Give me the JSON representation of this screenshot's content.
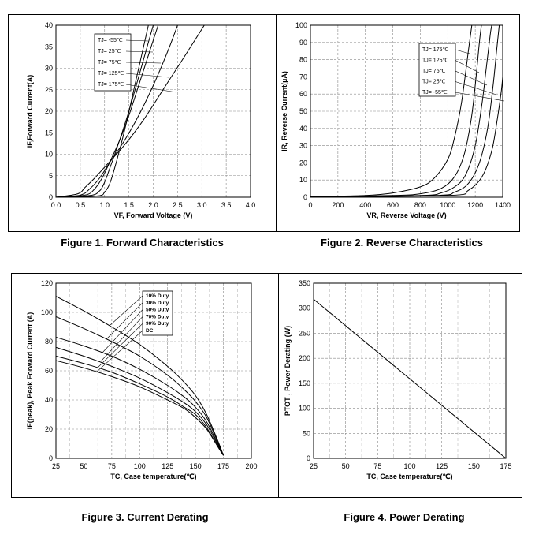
{
  "figures": {
    "fig1": "Figure 1. Forward Characteristics",
    "fig2": "Figure 2. Reverse Characteristics",
    "fig3": "Figure 3. Current Derating",
    "fig4": "Figure 4. Power Derating"
  },
  "chart_data": [
    {
      "id": "forward",
      "type": "line",
      "xlabel": "VF, Forward Voltage (V)",
      "ylabel": "IF,Forward Current(A)",
      "xlim": [
        0,
        4.0
      ],
      "ylim": [
        0,
        40
      ],
      "xticks": [
        0.0,
        0.5,
        1.0,
        1.5,
        2.0,
        2.5,
        3.0,
        3.5,
        4.0
      ],
      "xtick_labels": [
        "0.0",
        "0.5",
        "1.0",
        "1.5",
        "2.0",
        "2.5",
        "3.0",
        "3.5",
        "4.0"
      ],
      "yticks": [
        0,
        5,
        10,
        15,
        20,
        25,
        30,
        35,
        40
      ],
      "grid": "dashed",
      "legend_position": "top-left",
      "series": [
        {
          "name": "TJ= -55℃",
          "x": [
            0.0,
            0.85,
            1.0,
            1.1,
            1.2,
            1.4,
            1.6,
            1.8,
            1.9
          ],
          "y": [
            0,
            0.3,
            1.2,
            3.0,
            6.5,
            15,
            25,
            35,
            40
          ]
        },
        {
          "name": "TJ= 25℃",
          "x": [
            0.0,
            0.7,
            0.9,
            1.0,
            1.1,
            1.3,
            1.5,
            1.7,
            1.9,
            2.0
          ],
          "y": [
            0,
            0.4,
            1.5,
            3.5,
            6.5,
            13,
            20,
            28,
            36,
            40
          ]
        },
        {
          "name": "TJ= 75℃",
          "x": [
            0.0,
            0.6,
            0.8,
            0.95,
            1.1,
            1.3,
            1.5,
            1.7,
            1.9,
            2.1
          ],
          "y": [
            0,
            0.5,
            2.0,
            4.5,
            8.0,
            13,
            19,
            26,
            33,
            40
          ]
        },
        {
          "name": "TJ= 125℃",
          "x": [
            0.0,
            0.5,
            0.7,
            0.9,
            1.1,
            1.4,
            1.7,
            2.0,
            2.3,
            2.5
          ],
          "y": [
            0,
            0.5,
            2.0,
            4.5,
            8.0,
            13,
            19,
            26,
            34,
            40
          ]
        },
        {
          "name": "TJ= 175℃",
          "x": [
            0.0,
            0.45,
            0.6,
            0.8,
            1.0,
            1.4,
            1.8,
            2.2,
            2.6,
            3.05
          ],
          "y": [
            0,
            0.8,
            2.3,
            4.5,
            7.0,
            12,
            18,
            25,
            32,
            40
          ]
        }
      ]
    },
    {
      "id": "reverse",
      "type": "line",
      "xlabel": "VR, Reverse Voltage (V)",
      "ylabel": "IR, Reverse Current(µA)",
      "xlim": [
        0,
        1400
      ],
      "ylim": [
        0,
        100
      ],
      "xticks": [
        0,
        200,
        400,
        600,
        800,
        1000,
        1200,
        1400
      ],
      "yticks": [
        0,
        10,
        20,
        30,
        40,
        50,
        60,
        70,
        80,
        90,
        100
      ],
      "grid": "dashed",
      "legend_position": "top-right",
      "series": [
        {
          "name": "TJ= 175℃",
          "x": [
            0,
            400,
            600,
            800,
            900,
            1000,
            1050,
            1100,
            1150,
            1175
          ],
          "y": [
            0.3,
            1,
            2.5,
            6,
            11,
            22,
            35,
            55,
            85,
            100
          ]
        },
        {
          "name": "TJ= 125℃",
          "x": [
            0,
            600,
            800,
            950,
            1050,
            1120,
            1170,
            1200,
            1230,
            1245
          ],
          "y": [
            0.2,
            1,
            2,
            5,
            12,
            25,
            45,
            65,
            90,
            100
          ]
        },
        {
          "name": "TJ= 75℃",
          "x": [
            0,
            800,
            950,
            1050,
            1130,
            1200,
            1250,
            1280,
            1310,
            1320
          ],
          "y": [
            0.1,
            1,
            2.5,
            6,
            13,
            30,
            55,
            75,
            95,
            100
          ]
        },
        {
          "name": "TJ= 25℃",
          "x": [
            0,
            900,
            1050,
            1150,
            1230,
            1290,
            1330,
            1355,
            1375
          ],
          "y": [
            0.1,
            1,
            3,
            8,
            20,
            40,
            65,
            85,
            100
          ]
        },
        {
          "name": "TJ= -55℃",
          "x": [
            0,
            1000,
            1150,
            1250,
            1320,
            1360,
            1390,
            1400
          ],
          "y": [
            0.1,
            1,
            4,
            12,
            27,
            45,
            62,
            70
          ]
        }
      ]
    },
    {
      "id": "current_derating",
      "type": "line",
      "xlabel": "TC, Case temperature(℃)",
      "ylabel": "IF(peak), Peak Forward Current (A)",
      "xlim": [
        25,
        200
      ],
      "ylim": [
        0,
        120
      ],
      "xticks": [
        25,
        50,
        75,
        100,
        125,
        150,
        175,
        200
      ],
      "yticks": [
        0,
        20,
        40,
        60,
        80,
        100,
        120
      ],
      "grid": "dashed",
      "legend_position": "top-center",
      "series": [
        {
          "name": "10% Duty",
          "x": [
            25,
            50,
            75,
            100,
            125,
            140,
            150,
            160,
            170,
            175
          ],
          "y": [
            111,
            101,
            90,
            78,
            63,
            52,
            43,
            30,
            12,
            2
          ]
        },
        {
          "name": "30% Duty",
          "x": [
            25,
            50,
            75,
            100,
            125,
            140,
            150,
            160,
            170,
            175
          ],
          "y": [
            97,
            89,
            80,
            70,
            57,
            47,
            39,
            28,
            11,
            2
          ]
        },
        {
          "name": "50% Duty",
          "x": [
            25,
            50,
            75,
            100,
            125,
            140,
            150,
            160,
            170,
            175
          ],
          "y": [
            83,
            77,
            70,
            61,
            50,
            42,
            35,
            25,
            10,
            2
          ]
        },
        {
          "name": "70% Duty",
          "x": [
            25,
            50,
            75,
            100,
            125,
            140,
            150,
            160,
            170,
            175
          ],
          "y": [
            76,
            70,
            63,
            55,
            45,
            38,
            32,
            23,
            9,
            2
          ]
        },
        {
          "name": "90% Duty",
          "x": [
            25,
            50,
            75,
            100,
            125,
            140,
            150,
            160,
            170,
            175
          ],
          "y": [
            70,
            65,
            59,
            51,
            42,
            35,
            30,
            21,
            8,
            2
          ]
        },
        {
          "name": "DC",
          "x": [
            25,
            50,
            75,
            100,
            125,
            140,
            150,
            160,
            170,
            175
          ],
          "y": [
            67,
            62,
            56,
            49,
            40,
            34,
            28,
            20,
            8,
            2
          ]
        }
      ]
    },
    {
      "id": "power_derating",
      "type": "line",
      "xlabel": "TC, Case temperature(℃)",
      "ylabel": "PTOT , Power Derating (W)",
      "xlim": [
        25,
        175
      ],
      "ylim": [
        0,
        350
      ],
      "xticks": [
        25,
        50,
        75,
        100,
        125,
        150,
        175
      ],
      "yticks": [
        0,
        50,
        100,
        150,
        200,
        250,
        300,
        350
      ],
      "grid": "dashed",
      "series": [
        {
          "x": [
            25,
            175
          ],
          "y": [
            318,
            0
          ]
        }
      ]
    }
  ]
}
